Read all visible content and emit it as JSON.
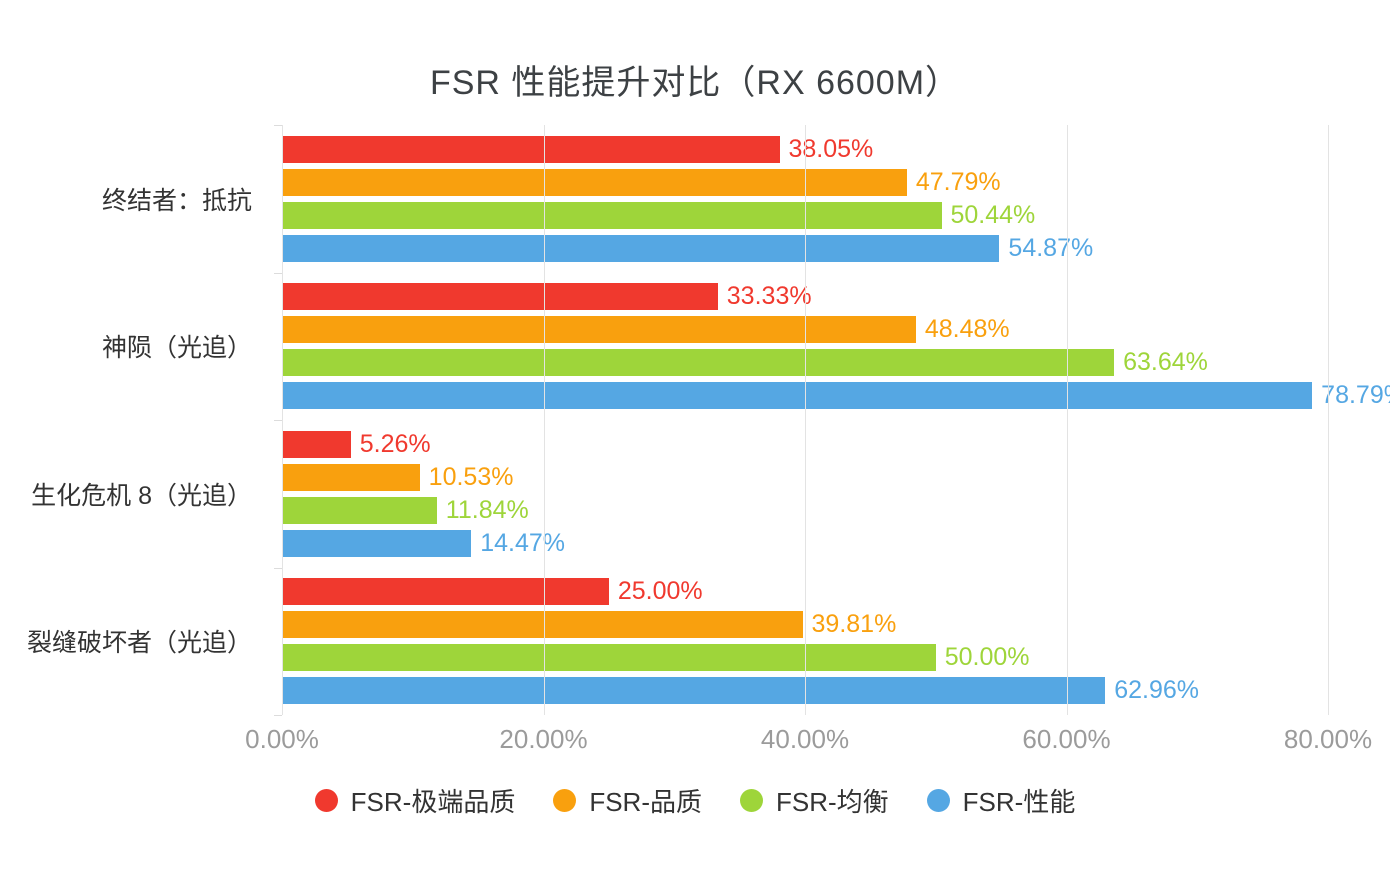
{
  "chart_data": {
    "type": "bar",
    "orientation": "horizontal",
    "title": "FSR 性能提升对比（RX 6600M）",
    "categories": [
      "终结者：抵抗",
      "神陨（光追）",
      "生化危机 8（光追）",
      "裂缝破坏者（光追）"
    ],
    "series": [
      {
        "name": "FSR-极端品质",
        "color": "#f0392e",
        "values": [
          38.05,
          33.33,
          5.26,
          25.0
        ]
      },
      {
        "name": "FSR-品质",
        "color": "#f9a00e",
        "values": [
          47.79,
          48.48,
          10.53,
          39.81
        ]
      },
      {
        "name": "FSR-均衡",
        "color": "#9ed53a",
        "values": [
          50.44,
          63.64,
          11.84,
          50.0
        ]
      },
      {
        "name": "FSR-性能",
        "color": "#55a7e3",
        "values": [
          54.87,
          78.79,
          14.47,
          62.96
        ]
      }
    ],
    "x_ticks": [
      "0.00%",
      "20.00%",
      "40.00%",
      "60.00%",
      "80.00%"
    ],
    "xlim": [
      0,
      80
    ],
    "value_suffix": "%",
    "value_decimals": 2,
    "grid": true,
    "gridline_color": "#e3e3e3",
    "legend_position": "bottom"
  }
}
